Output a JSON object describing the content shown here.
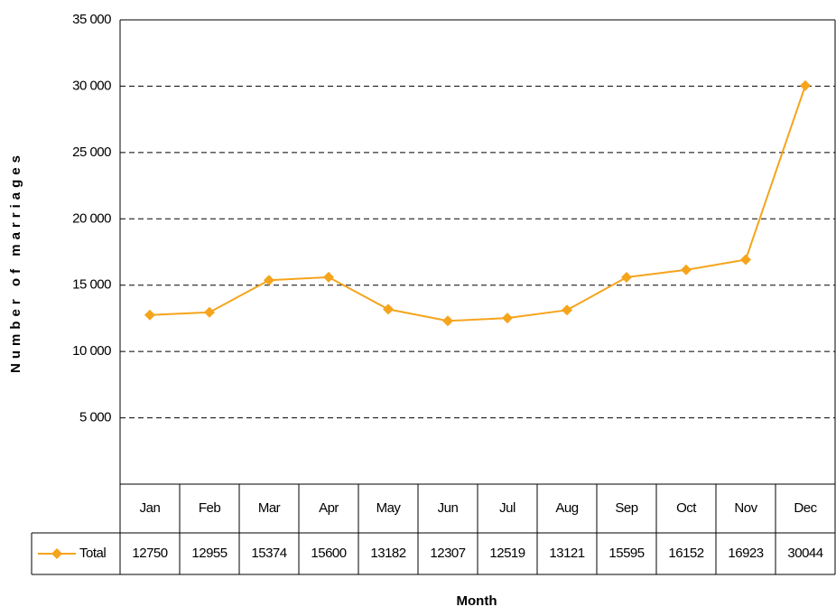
{
  "chart_data": {
    "type": "line",
    "x_label": "Month",
    "y_label": "Number of marriages",
    "categories": [
      "Jan",
      "Feb",
      "Mar",
      "Apr",
      "May",
      "Jun",
      "Jul",
      "Aug",
      "Sep",
      "Oct",
      "Nov",
      "Dec"
    ],
    "series": [
      {
        "name": "Total",
        "color": "#f5a41c",
        "values": [
          12750,
          12955,
          15374,
          15600,
          13182,
          12307,
          12519,
          13121,
          15595,
          16152,
          16923,
          30044
        ]
      }
    ],
    "ylim": [
      0,
      35000
    ],
    "yticks": [
      {
        "value": 5000,
        "label": "5 000"
      },
      {
        "value": 10000,
        "label": "10 000"
      },
      {
        "value": 15000,
        "label": "15 000"
      },
      {
        "value": 20000,
        "label": "20 000"
      },
      {
        "value": 25000,
        "label": "25 000"
      },
      {
        "value": 30000,
        "label": "30 000"
      },
      {
        "value": 35000,
        "label": "35 000"
      }
    ],
    "grid": true
  }
}
